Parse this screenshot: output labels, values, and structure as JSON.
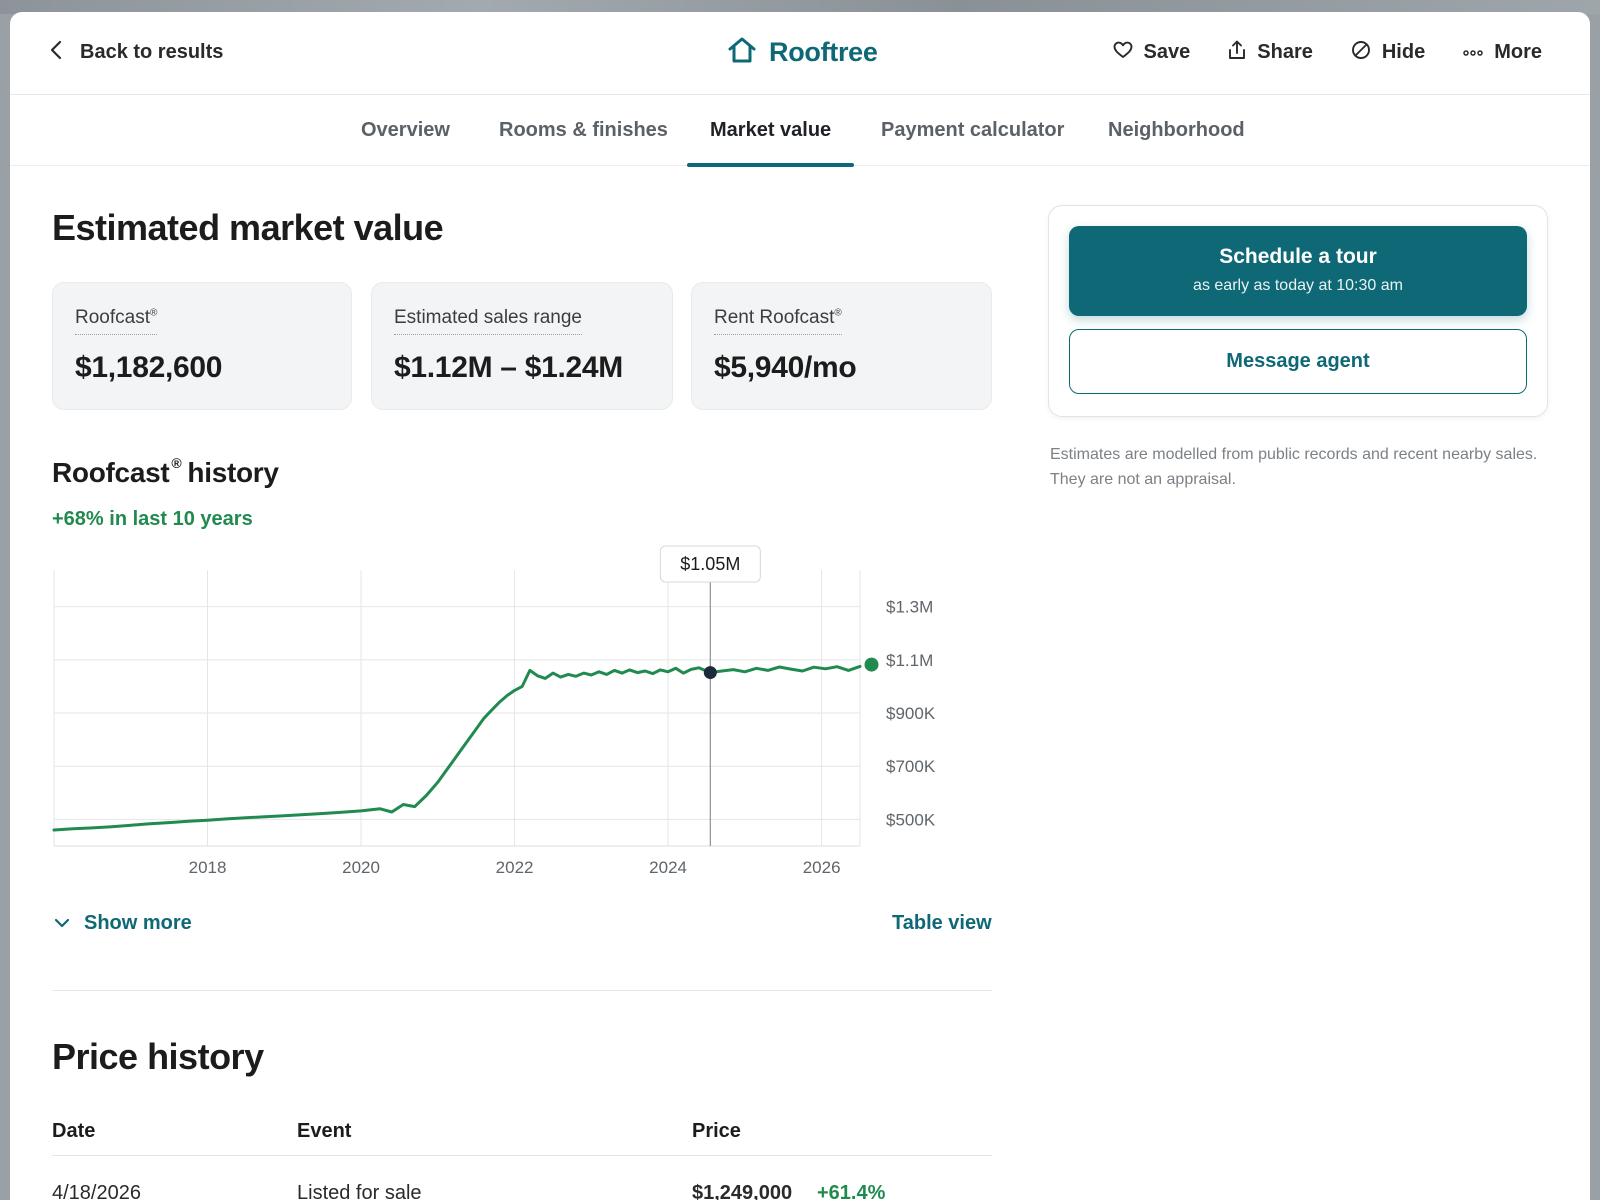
{
  "header": {
    "back_label": "Back to results",
    "brand": "Rooftree",
    "actions": [
      {
        "label": "Save",
        "icon": "heart-icon"
      },
      {
        "label": "Share",
        "icon": "share-icon"
      },
      {
        "label": "Hide",
        "icon": "hide-icon"
      },
      {
        "label": "More",
        "icon": "more-icon"
      }
    ]
  },
  "tabs": [
    {
      "label": "Overview",
      "active": false
    },
    {
      "label": "Rooms & finishes",
      "active": false
    },
    {
      "label": "Market value",
      "active": true
    },
    {
      "label": "Payment calculator",
      "active": false
    },
    {
      "label": "Neighborhood",
      "active": false
    }
  ],
  "main": {
    "title": "Estimated market value",
    "cards": [
      {
        "label": "Roofcast",
        "mark": "®",
        "value": "$1,182,600"
      },
      {
        "label": "Estimated sales range",
        "mark": "",
        "value": "$1.12M – $1.24M"
      },
      {
        "label": "Rent Roofcast",
        "mark": "®",
        "value": "$5,940/mo"
      }
    ],
    "history_title": "Roofcast",
    "history_mark": "®",
    "history_title_suffix": "history",
    "history_change": "+68% in last 10 years",
    "show_more": "Show more",
    "table_view": "Table view"
  },
  "chart_data": {
    "type": "line",
    "tooltip": "$1.05M",
    "tooltip_x": 2024.55,
    "xlim": [
      2016.0,
      2026.5
    ],
    "ylim": [
      400000,
      1400000
    ],
    "x_ticks": [
      2018,
      2020,
      2022,
      2024,
      2026
    ],
    "x_tick_labels": [
      "2018",
      "2020",
      "2022",
      "2024",
      "2026"
    ],
    "y_ticks": [
      500000,
      700000,
      900000,
      1100000,
      1300000
    ],
    "y_tick_labels": [
      "$500K",
      "$700K",
      "$900K",
      "$1.1M",
      "$1.3M"
    ],
    "grid": true,
    "series": [
      {
        "color": "#218a4f",
        "x": [
          2016.0,
          2016.25,
          2016.5,
          2016.75,
          2017.0,
          2017.25,
          2017.5,
          2017.75,
          2018.0,
          2018.25,
          2018.5,
          2018.75,
          2019.0,
          2019.25,
          2019.5,
          2019.75,
          2020.0,
          2020.25,
          2020.4,
          2020.55,
          2020.7,
          2020.85,
          2021.0,
          2021.1,
          2021.2,
          2021.3,
          2021.4,
          2021.5,
          2021.6,
          2021.7,
          2021.8,
          2021.9,
          2022.0,
          2022.1,
          2022.2,
          2022.3,
          2022.4,
          2022.5,
          2022.6,
          2022.7,
          2022.8,
          2022.9,
          2023.0,
          2023.1,
          2023.2,
          2023.3,
          2023.4,
          2023.5,
          2023.6,
          2023.7,
          2023.8,
          2023.9,
          2024.0,
          2024.1,
          2024.2,
          2024.3,
          2024.4,
          2024.55,
          2024.7,
          2024.85,
          2025.0,
          2025.15,
          2025.3,
          2025.45,
          2025.6,
          2025.75,
          2025.9,
          2026.05,
          2026.2,
          2026.35,
          2026.5
        ],
        "y": [
          460000,
          465000,
          468000,
          472000,
          478000,
          484000,
          488000,
          493000,
          497000,
          502000,
          506000,
          510000,
          514000,
          518000,
          522000,
          527000,
          532000,
          540000,
          528000,
          556000,
          548000,
          590000,
          640000,
          680000,
          720000,
          760000,
          800000,
          840000,
          880000,
          910000,
          940000,
          965000,
          985000,
          1000000,
          1060000,
          1040000,
          1030000,
          1050000,
          1035000,
          1045000,
          1038000,
          1050000,
          1043000,
          1055000,
          1045000,
          1060000,
          1050000,
          1062000,
          1052000,
          1058000,
          1048000,
          1062000,
          1055000,
          1068000,
          1050000,
          1064000,
          1070000,
          1052000,
          1058000,
          1063000,
          1055000,
          1068000,
          1060000,
          1073000,
          1065000,
          1058000,
          1072000,
          1066000,
          1074000,
          1060000,
          1075000
        ]
      }
    ],
    "highlight": {
      "x": 2024.55,
      "y": 1052000,
      "color": "#1c2b3a"
    },
    "endpoint": {
      "x": 2026.65,
      "y": 1082000,
      "color": "#218a4f"
    }
  },
  "sidebar": {
    "tour_title": "Schedule a tour",
    "tour_sub": "as early as today at 10:30 am",
    "message": "Message agent",
    "disclaimer": "Estimates are modelled from public records and recent nearby sales. They are not an appraisal."
  },
  "price_history": {
    "title": "Price history",
    "columns": [
      "Date",
      "Event",
      "Price"
    ],
    "rows": [
      {
        "date": "4/18/2026",
        "event": "Listed for sale",
        "price": "$1,249,000",
        "change": "+61.4%"
      }
    ]
  }
}
